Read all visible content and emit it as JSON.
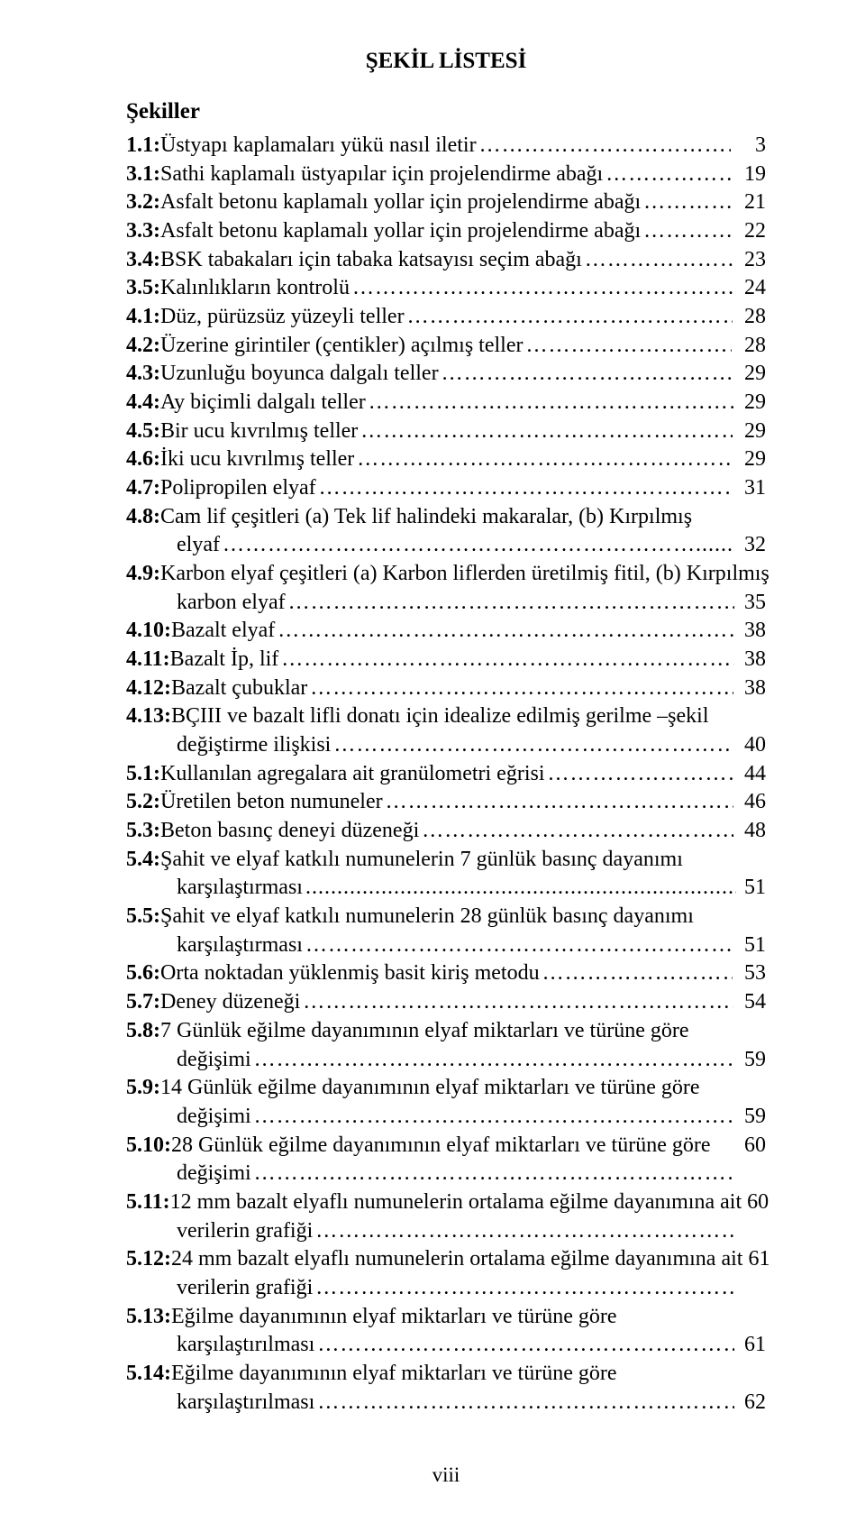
{
  "title": "ŞEKİL LİSTESİ",
  "section_head": "Şekiller",
  "footer": "viii",
  "leader_char": ".",
  "entries": [
    {
      "num": "1.1:",
      "text": " Üstyapı kaplamaları yükü nasıl iletir",
      "leader": "……………………………….",
      "page": "3"
    },
    {
      "num": "3.1:",
      "text": " Sathi kaplamalı üstyapılar için projelendirme abağı",
      "leader": "…………………",
      "page": "19"
    },
    {
      "num": "3.2:",
      "text": " Asfalt betonu kaplamalı yollar için projelendirme abağı",
      "leader": "……………",
      "page": "21"
    },
    {
      "num": "3.3:",
      "text": " Asfalt betonu kaplamalı yollar için projelendirme abağı",
      "leader": "……………",
      "page": "22"
    },
    {
      "num": "3.4:",
      "text": " BSK tabakaları için tabaka katsayısı seçim abağı",
      "leader": "……………………...",
      "page": "23"
    },
    {
      "num": "3.5:",
      "text": " Kalınlıkların kontrolü",
      "leader": "…………………………………………………..",
      "page": "24"
    },
    {
      "num": "4.1:",
      "text": " Düz, pürüzsüz yüzeyli teller",
      "leader": "…………………………………………….",
      "page": "28"
    },
    {
      "num": "4.2:",
      "text": " Üzerine girintiler (çentikler) açılmış teller",
      "leader": "………………………….",
      "page": "28"
    },
    {
      "num": "4.3:",
      "text": " Uzunluğu boyunca dalgalı teller",
      "leader": "…………………………………………..",
      "page": "29"
    },
    {
      "num": "4.4:",
      "text": " Ay biçimli dalgalı teller",
      "leader": "…………………………………………………...",
      "page": "29"
    },
    {
      "num": "4.5:",
      "text": " Bir ucu kıvrılmış teller",
      "leader": "………………………………………………….",
      "page": "29"
    },
    {
      "num": "4.6:",
      "text": " İki ucu kıvrılmış teller",
      "leader": "…………………………………………………",
      "page": "29"
    },
    {
      "num": "4.7:",
      "text": " Polipropilen elyaf",
      "leader": "………………………………………………………",
      "page": "31"
    },
    {
      "num": "4.8:",
      "text": " Cam lif çeşitleri (a) Tek lif halindeki makaralar, (b) Kırpılmış",
      "cont": [
        {
          "text": "elyaf",
          "leader": "………………………………………………………......................",
          "page": "32"
        }
      ]
    },
    {
      "num": "4.9:",
      "text": " Karbon elyaf çeşitleri (a) Karbon liflerden üretilmiş fitil, (b) Kırpılmış",
      "cont": [
        {
          "text": "karbon elyaf",
          "leader": "…………………………………………………………………",
          "page": "35"
        }
      ]
    },
    {
      "num": "4.10:",
      "text": " Bazalt elyaf",
      "leader": "……………………………………………………………….",
      "page": "38"
    },
    {
      "num": "4.11:",
      "text": " Bazalt İp, lif",
      "leader": "………………………………………………………………...",
      "page": "38"
    },
    {
      "num": "4.12:",
      "text": " Bazalt çubuklar",
      "leader": "…………………………………………………………..",
      "page": "38"
    },
    {
      "num": "4.13:",
      "text": " BÇIII ve bazalt lifli donatı için idealize edilmiş gerilme –şekil",
      "cont": [
        {
          "text": "değiştirme ilişkisi",
          "leader": "………………………………………………………..",
          "page": "40"
        }
      ]
    },
    {
      "num": "5.1:",
      "text": " Kullanılan agregalara ait granülometri eğrisi",
      "leader": "………………………..",
      "page": "44"
    },
    {
      "num": "5.2:",
      "text": " Üretilen beton numuneler",
      "leader": "…………………………………………………",
      "page": "46"
    },
    {
      "num": "5.3:",
      "text": " Beton basınç deneyi düzeneği",
      "leader": "……………………………………………",
      "page": "48"
    },
    {
      "num": "5.4:",
      "text": " Şahit ve elyaf katkılı numunelerin 7 günlük basınç dayanımı",
      "cont": [
        {
          "text": "karşılaştırması",
          "leader": "...........................................................................................",
          "page": "51"
        }
      ]
    },
    {
      "num": "5.5:",
      "text": " Şahit ve elyaf katkılı numunelerin 28 günlük basınç dayanımı",
      "cont": [
        {
          "text": "karşılaştırması",
          "leader": "…………………………………………………………….",
          "page": "51"
        }
      ]
    },
    {
      "num": "5.6:",
      "text": " Orta noktadan yüklenmiş basit kiriş metodu",
      "leader": "………………………...",
      "page": "53"
    },
    {
      "num": "5.7:",
      "text": " Deney düzeneği",
      "leader": "………………………………………………………..…..",
      "page": "54"
    },
    {
      "num": "5.8:",
      "text": " 7 Günlük eğilme dayanımının elyaf miktarları ve türüne göre",
      "cont": [
        {
          "text": "değişimi",
          "leader": "………………………………………………………………………",
          "page": "59"
        }
      ]
    },
    {
      "num": "5.9:",
      "text": " 14 Günlük eğilme dayanımının elyaf miktarları ve türüne göre",
      "cont": [
        {
          "text": "değişimi",
          "leader": "……………………………………………………………………...",
          "page": "59"
        }
      ]
    },
    {
      "num": "5.10:",
      "text": " 28 Günlük eğilme dayanımının elyaf miktarları ve türüne göre",
      "page_top": "60",
      "cont": [
        {
          "text": " değişimi",
          "leader": "…………………………………………………………………...",
          "page": ""
        }
      ]
    },
    {
      "num": "5.11:",
      "text": " 12 mm bazalt elyaflı numunelerin ortalama eğilme dayanımına ait",
      "page_top": "60",
      "cont": [
        {
          "text": "verilerin grafiği",
          "leader": "……………………………………………………………",
          "page": ""
        }
      ]
    },
    {
      "num": "5.12:",
      "text": " 24 mm bazalt elyaflı numunelerin ortalama eğilme dayanımına ait",
      "page_top": "61",
      "cont": [
        {
          "text": "verilerin grafiği",
          "leader": "……………………………………………………………",
          "page": ""
        }
      ]
    },
    {
      "num": "5.13:",
      "text": " Eğilme dayanımının elyaf miktarları ve türüne göre",
      "cont": [
        {
          "text": "karşılaştırılması",
          "leader": "…………………………………………………………….",
          "page": "61"
        }
      ]
    },
    {
      "num": "5.14:",
      "text": " Eğilme dayanımının elyaf miktarları ve türüne göre",
      "cont": [
        {
          "text": "karşılaştırılması",
          "leader": "……………………………………………………………",
          "page": "62"
        }
      ]
    }
  ]
}
